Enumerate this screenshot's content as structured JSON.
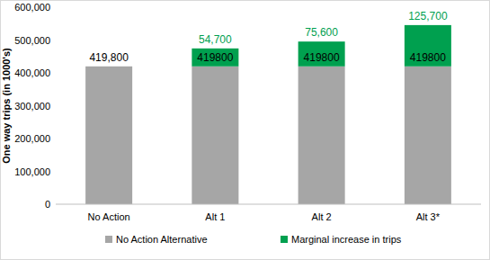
{
  "chart_data": {
    "type": "bar",
    "stacked": true,
    "y_label": "One way trips (in 1000's)",
    "categories": [
      "No Action",
      "Alt 1",
      "Alt 2",
      "Alt 3*"
    ],
    "series": [
      {
        "name": "No Action Alternative",
        "color": "#a6a6a6",
        "values": [
          419800,
          419800,
          419800,
          419800
        ],
        "value_labels": [
          "419,800",
          null,
          null,
          null
        ]
      },
      {
        "name": "Marginal increase in trips",
        "color": "#00a04f",
        "values": [
          null,
          54700,
          75600,
          125700
        ],
        "value_labels": [
          null,
          "54,700",
          "75,600",
          "125,700"
        ]
      }
    ],
    "ylim": [
      0,
      600000
    ],
    "yticks": [
      0,
      {
        "value": 100000,
        "label": "100,000"
      },
      {
        "value": 200000,
        "label": "200,000"
      },
      {
        "value": 300000,
        "label": "300,000"
      },
      {
        "value": 400000,
        "label": "400,000"
      },
      {
        "value": 500000,
        "label": "500,000"
      },
      {
        "value": 600000,
        "label": "600,000"
      }
    ],
    "grid": false,
    "data_labels": true,
    "legend": "bottom"
  }
}
